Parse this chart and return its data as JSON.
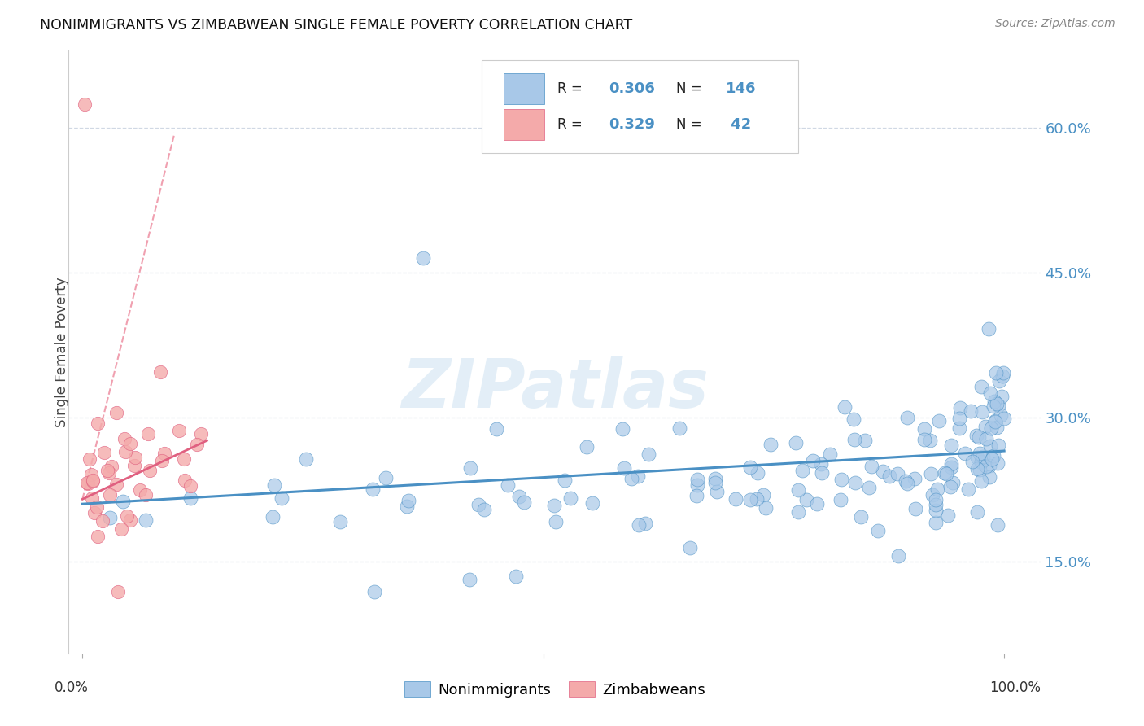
{
  "title": "NONIMMIGRANTS VS ZIMBABWEAN SINGLE FEMALE POVERTY CORRELATION CHART",
  "source": "Source: ZipAtlas.com",
  "ylabel": "Single Female Poverty",
  "y_ticks": [
    0.15,
    0.3,
    0.45,
    0.6
  ],
  "y_tick_labels": [
    "15.0%",
    "30.0%",
    "45.0%",
    "60.0%"
  ],
  "blue_color": "#a8c8e8",
  "pink_color": "#f4aaaa",
  "blue_line_color": "#4a90c4",
  "pink_line_color": "#e06080",
  "pink_dash_color": "#f0a0b0",
  "legend_R_blue": "0.306",
  "legend_N_blue": "146",
  "legend_R_pink": "0.329",
  "legend_N_pink": "42",
  "watermark": "ZIPatlas",
  "background_color": "#ffffff",
  "grid_color": "#d0d8e4",
  "tick_color": "#4a90c4"
}
